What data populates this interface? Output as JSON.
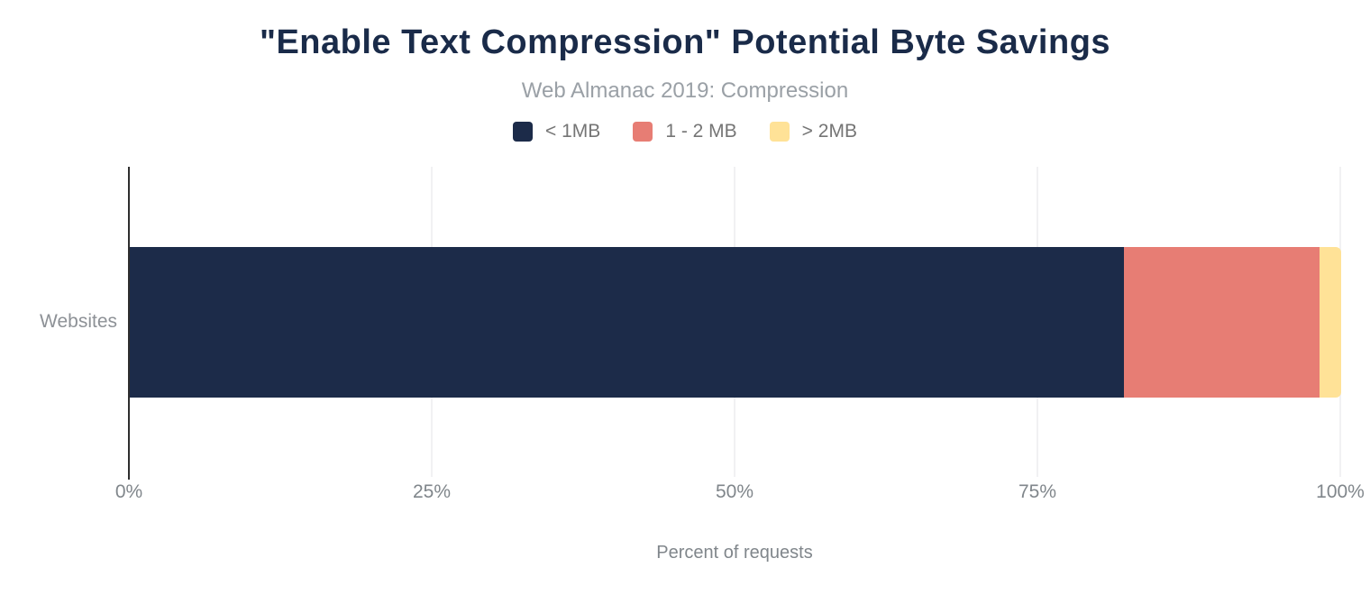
{
  "chart_data": {
    "type": "bar",
    "orientation": "horizontal",
    "stacked": true,
    "title": "\"Enable Text Compression\" Potential Byte Savings",
    "subtitle": "Web Almanac 2019: Compression",
    "categories": [
      "Websites"
    ],
    "series": [
      {
        "name": "< 1MB",
        "color": "#1c2b49",
        "values": [
          82.1
        ]
      },
      {
        "name": "1 - 2 MB",
        "color": "#e77d74",
        "values": [
          16.1
        ]
      },
      {
        "name": "> 2MB",
        "color": "#ffe297",
        "values": [
          1.8
        ]
      }
    ],
    "xlabel": "Percent of requests",
    "ylabel": "",
    "xlim": [
      0,
      100
    ],
    "x_ticks": [
      "0%",
      "25%",
      "50%",
      "75%",
      "100%"
    ],
    "x_tick_values": [
      0,
      25,
      50,
      75,
      100
    ],
    "grid": "vertical",
    "legend_position": "top"
  },
  "colors": {
    "title_text": "#1a2b49",
    "subtitle_text": "#9aa0a6",
    "legend_text": "#757575",
    "axis_text": "#80868b",
    "gridline": "#f1f1f3",
    "axis_line": "#2e2e2e",
    "background": "#ffffff"
  }
}
